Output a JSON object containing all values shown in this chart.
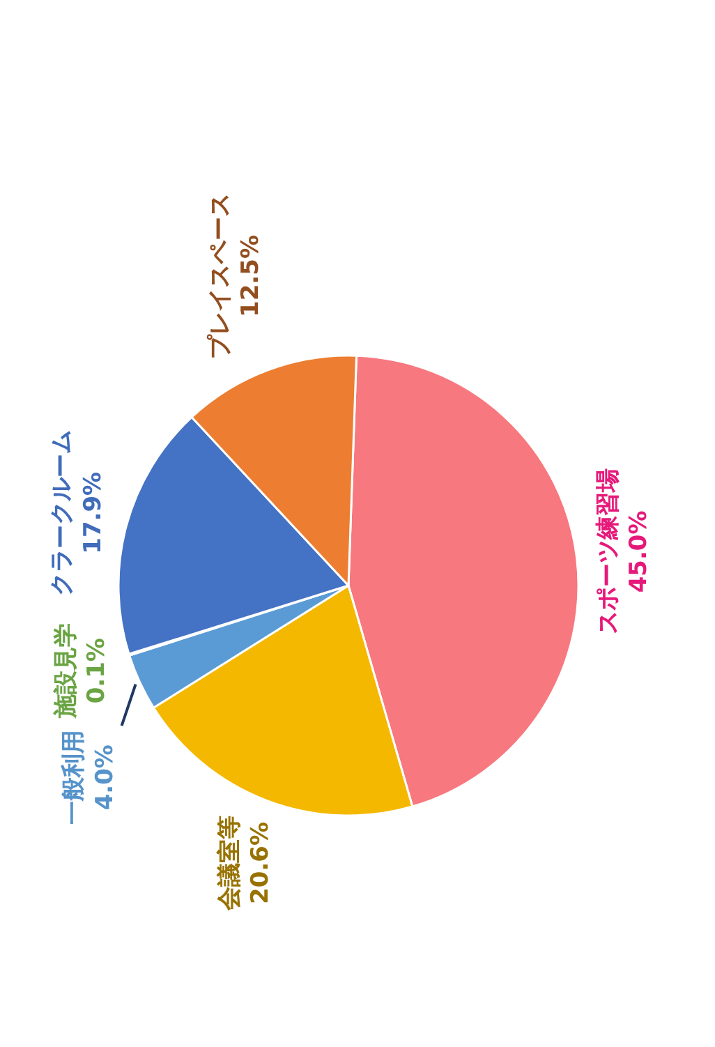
{
  "chart_data": {
    "type": "pie",
    "categories": [
      "スポーツ練習場",
      "会議室等",
      "一般利用",
      "施設見学",
      "クラークルーム",
      "プレイスペース"
    ],
    "values": [
      45.0,
      20.6,
      4.0,
      0.1,
      17.9,
      12.5
    ],
    "value_labels": [
      "45.0%",
      "20.6%",
      "4.0%",
      "0.1%",
      "17.9%",
      "12.5%"
    ],
    "colors": [
      "#f7787e",
      "#f5b800",
      "#5b9bd5",
      "#70ad47",
      "#4472c4",
      "#ed7d31"
    ]
  }
}
